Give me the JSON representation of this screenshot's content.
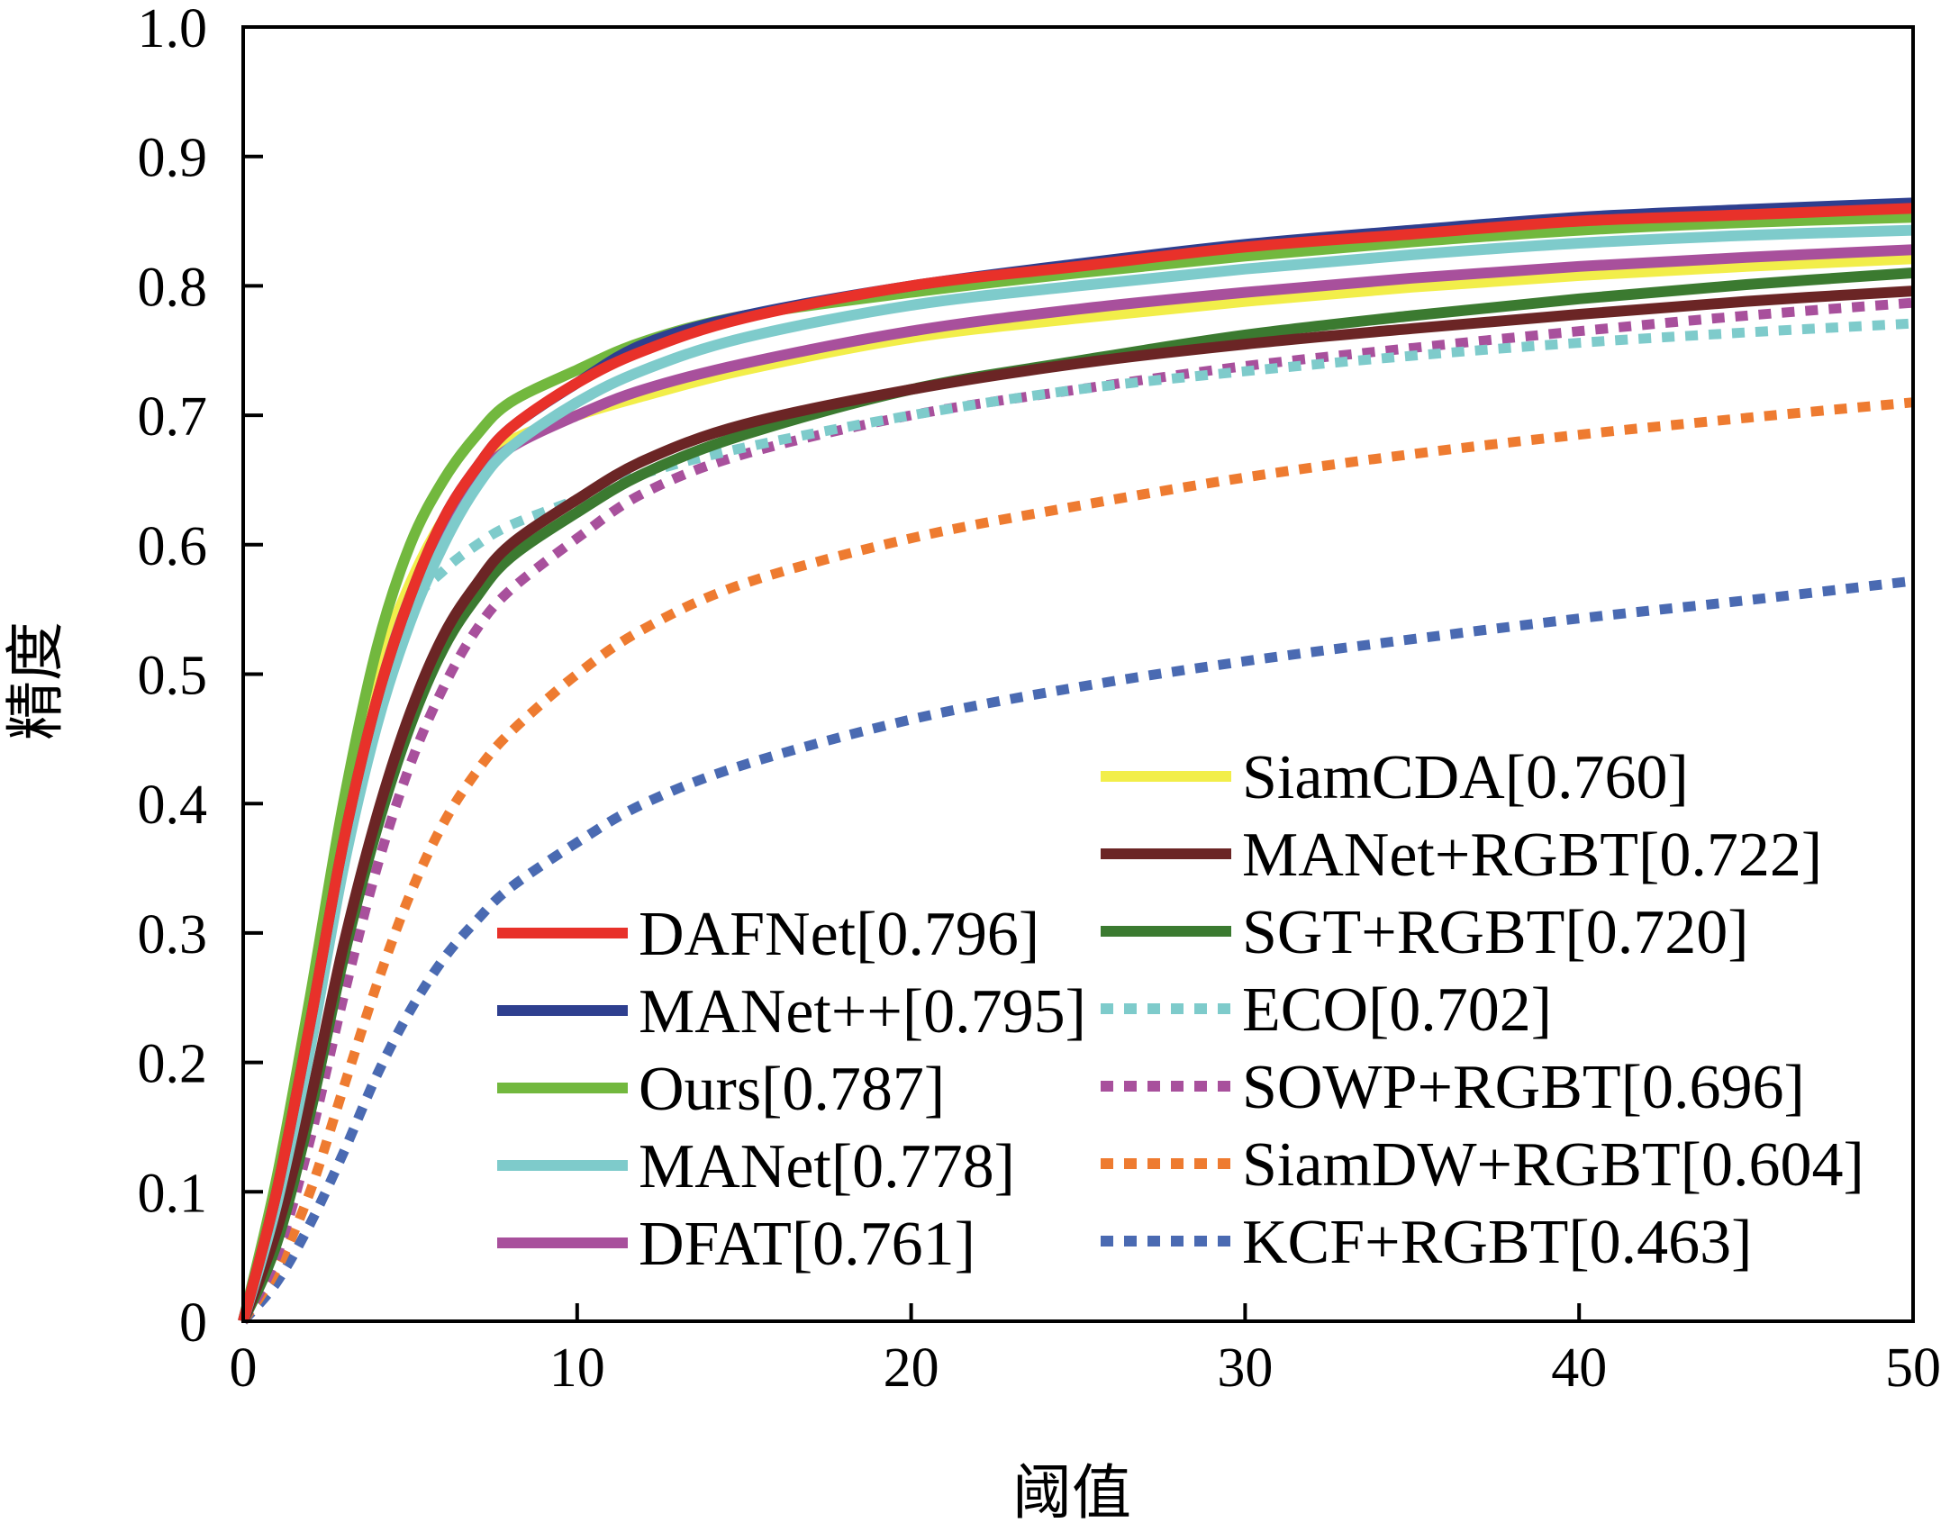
{
  "chart_data": {
    "type": "line",
    "title": "",
    "xlabel": "阈值",
    "ylabel": "精度",
    "xlim": [
      0,
      50
    ],
    "ylim": [
      0,
      1.0
    ],
    "x_ticks": [
      "0",
      "10",
      "20",
      "30",
      "40",
      "50"
    ],
    "y_ticks": [
      "0",
      "0.1",
      "0.2",
      "0.3",
      "0.4",
      "0.5",
      "0.6",
      "0.7",
      "0.8",
      "0.9",
      "1.0"
    ],
    "grid": false,
    "x": [
      0,
      1,
      2,
      3,
      4,
      5,
      6,
      7,
      8,
      10,
      12,
      15,
      20,
      25,
      30,
      35,
      40,
      45,
      50
    ],
    "series": [
      {
        "name": "DAFNet[0.796]",
        "color": "#e8312a",
        "dash": "solid",
        "values": [
          0,
          0.1,
          0.23,
          0.37,
          0.48,
          0.56,
          0.62,
          0.66,
          0.69,
          0.725,
          0.75,
          0.775,
          0.8,
          0.815,
          0.83,
          0.84,
          0.85,
          0.855,
          0.86
        ]
      },
      {
        "name": "MANet++[0.795]",
        "color": "#2e3f8f",
        "dash": "solid",
        "values": [
          0,
          0.1,
          0.23,
          0.37,
          0.48,
          0.56,
          0.62,
          0.66,
          0.69,
          0.725,
          0.755,
          0.777,
          0.8,
          0.817,
          0.832,
          0.843,
          0.853,
          0.859,
          0.864
        ]
      },
      {
        "name": "Ours[0.787]",
        "color": "#72b83e",
        "dash": "solid",
        "values": [
          0,
          0.11,
          0.25,
          0.4,
          0.52,
          0.6,
          0.65,
          0.685,
          0.71,
          0.735,
          0.757,
          0.777,
          0.795,
          0.81,
          0.823,
          0.834,
          0.843,
          0.849,
          0.853
        ]
      },
      {
        "name": "MANet[0.778]",
        "color": "#7ecbcb",
        "dash": "solid",
        "values": [
          0,
          0.09,
          0.21,
          0.35,
          0.46,
          0.54,
          0.6,
          0.645,
          0.675,
          0.71,
          0.735,
          0.76,
          0.785,
          0.8,
          0.813,
          0.824,
          0.833,
          0.839,
          0.843
        ]
      },
      {
        "name": "DFAT[0.761]",
        "color": "#a8509c",
        "dash": "solid",
        "values": [
          0,
          0.1,
          0.23,
          0.37,
          0.48,
          0.56,
          0.61,
          0.65,
          0.675,
          0.7,
          0.72,
          0.74,
          0.765,
          0.782,
          0.795,
          0.806,
          0.815,
          0.822,
          0.828
        ]
      },
      {
        "name": "SiamCDA[0.760]",
        "color": "#f2ee4a",
        "dash": "solid",
        "values": [
          0,
          0.1,
          0.24,
          0.39,
          0.5,
          0.57,
          0.62,
          0.655,
          0.68,
          0.7,
          0.715,
          0.735,
          0.76,
          0.775,
          0.788,
          0.799,
          0.808,
          0.815,
          0.821
        ]
      },
      {
        "name": "MANet+RGBT[0.722]",
        "color": "#6b2525",
        "dash": "solid",
        "values": [
          0,
          0.07,
          0.17,
          0.29,
          0.39,
          0.47,
          0.53,
          0.57,
          0.6,
          0.635,
          0.665,
          0.693,
          0.72,
          0.74,
          0.755,
          0.767,
          0.778,
          0.788,
          0.796
        ]
      },
      {
        "name": "SGT+RGBT[0.720]",
        "color": "#3b7a30",
        "dash": "solid",
        "values": [
          0,
          0.06,
          0.16,
          0.28,
          0.38,
          0.46,
          0.52,
          0.56,
          0.59,
          0.625,
          0.655,
          0.685,
          0.72,
          0.742,
          0.762,
          0.777,
          0.79,
          0.801,
          0.81
        ]
      },
      {
        "name": "ECO[0.702]",
        "color": "#7ecbcb",
        "dash": "dot",
        "values": [
          0,
          0.08,
          0.21,
          0.35,
          0.47,
          0.55,
          0.58,
          0.6,
          0.615,
          0.635,
          0.655,
          0.675,
          0.7,
          0.72,
          0.734,
          0.746,
          0.756,
          0.764,
          0.771
        ]
      },
      {
        "name": "SOWP+RGBT[0.696]",
        "color": "#a8509c",
        "dash": "dot",
        "values": [
          0,
          0.05,
          0.14,
          0.25,
          0.35,
          0.43,
          0.49,
          0.535,
          0.565,
          0.605,
          0.64,
          0.67,
          0.7,
          0.72,
          0.738,
          0.752,
          0.765,
          0.777,
          0.787
        ]
      },
      {
        "name": "SiamDW+RGBT[0.604]",
        "color": "#ee7b30",
        "dash": "dot",
        "values": [
          0,
          0.04,
          0.1,
          0.18,
          0.26,
          0.33,
          0.385,
          0.425,
          0.455,
          0.5,
          0.535,
          0.57,
          0.605,
          0.63,
          0.652,
          0.67,
          0.685,
          0.698,
          0.71
        ]
      },
      {
        "name": "KCF+RGBT[0.463]",
        "color": "#4a6ab2",
        "dash": "dot",
        "values": [
          0,
          0.03,
          0.075,
          0.13,
          0.19,
          0.24,
          0.28,
          0.31,
          0.335,
          0.37,
          0.4,
          0.43,
          0.465,
          0.49,
          0.51,
          0.527,
          0.543,
          0.557,
          0.572
        ]
      }
    ]
  }
}
